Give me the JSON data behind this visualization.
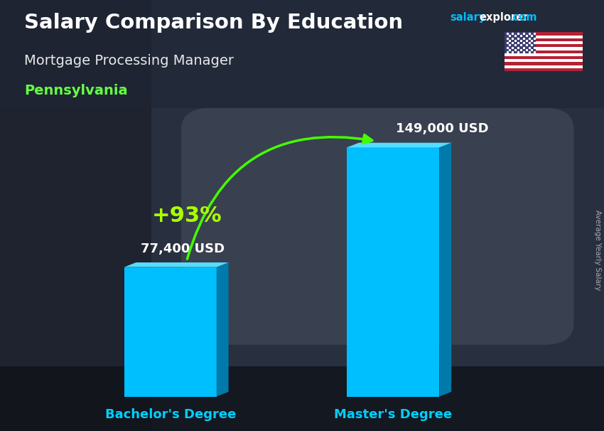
{
  "title": "Salary Comparison By Education",
  "subtitle": "Mortgage Processing Manager",
  "location": "Pennsylvania",
  "website_salary": "salary",
  "website_explorer": "explorer",
  "website_com": ".com",
  "categories": [
    "Bachelor's Degree",
    "Master's Degree"
  ],
  "values": [
    77400,
    149000
  ],
  "value_labels": [
    "77,400 USD",
    "149,000 USD"
  ],
  "pct_change": "+93%",
  "bar_color_front": "#00BFFF",
  "bar_color_top": "#55DDFF",
  "bar_color_side": "#007AAA",
  "ylabel": "Average Yearly Salary",
  "title_color": "#ffffff",
  "subtitle_color": "#e8e8e8",
  "location_color": "#66ff44",
  "category_color": "#00CFFF",
  "value_color": "#ffffff",
  "pct_color": "#aaff00",
  "website_color1": "#00BFFF",
  "website_color2": "#ffffff",
  "arrow_color": "#44ff00",
  "ylabel_color": "#aaaaaa",
  "bg_dark": "#1a2030",
  "figsize": [
    8.5,
    6.06
  ],
  "dpi": 100
}
